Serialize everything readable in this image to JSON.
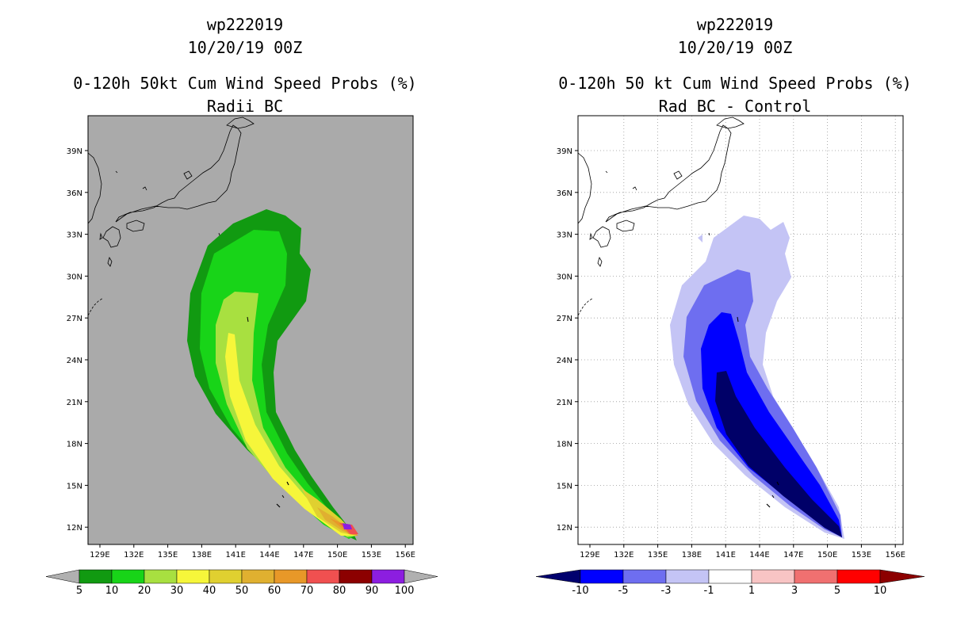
{
  "left_panel": {
    "title_line1": "wp222019",
    "title_line2": "10/20/19 00Z",
    "title_line3": "0-120h 50kt Cum Wind Speed Probs (%)",
    "title_line4": "Radii BC",
    "colorbar": {
      "labels": [
        "5",
        "10",
        "20",
        "30",
        "40",
        "50",
        "60",
        "70",
        "80",
        "90",
        "100"
      ],
      "colors": [
        "#119a11",
        "#18d418",
        "#a8e040",
        "#f6f63a",
        "#e0d030",
        "#e0b030",
        "#e89828",
        "#f05050",
        "#8c0000",
        "#8c1ee0"
      ],
      "arrow_color": "#b0b0b0"
    }
  },
  "right_panel": {
    "title_line1": "wp222019",
    "title_line2": "10/20/19 00Z",
    "title_line3": "0-120h 50 kt Cum Wind Speed Probs (%)",
    "title_line4": "Rad BC - Control",
    "colorbar": {
      "labels": [
        "-10",
        "-5",
        "-3",
        "-1",
        "1",
        "3",
        "5",
        "10"
      ],
      "colors": [
        "#0000ff",
        "#6e6ef0",
        "#c4c4f5",
        "#ffffff",
        "#f8c4c4",
        "#f07070",
        "#ff0000"
      ],
      "left_arrow_color": "#00006e",
      "right_arrow_color": "#8c0000"
    }
  },
  "map": {
    "lon_labels": [
      "129E",
      "132E",
      "135E",
      "138E",
      "141E",
      "144E",
      "147E",
      "150E",
      "153E",
      "156E"
    ],
    "lat_labels": [
      "39N",
      "36N",
      "33N",
      "30N",
      "27N",
      "24N",
      "21N",
      "18N",
      "15N",
      "12N"
    ],
    "left_background": "#aaaaaa",
    "right_background": "#ffffff"
  }
}
